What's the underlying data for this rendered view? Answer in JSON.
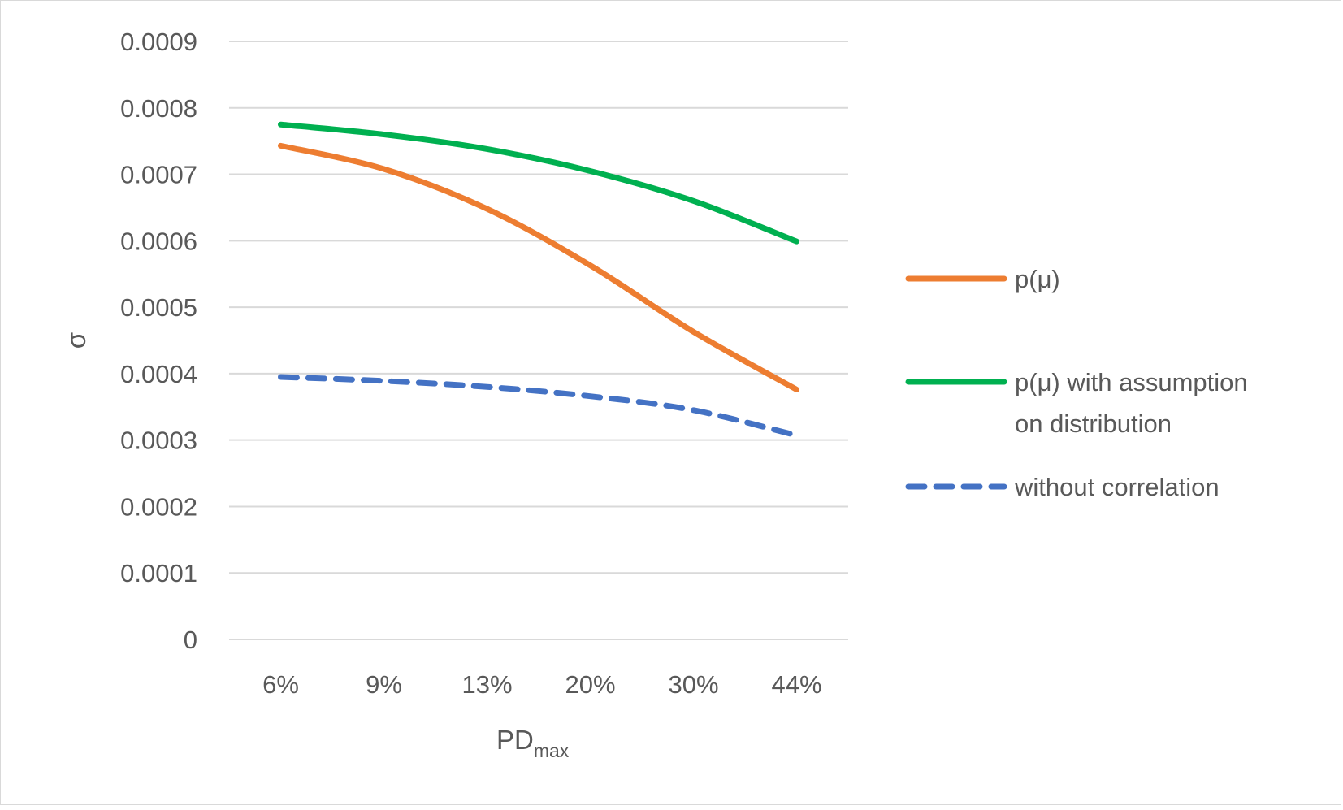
{
  "chart_data": {
    "type": "line",
    "title": "",
    "xlabel": "PD",
    "xlabel_subscript": "max",
    "ylabel": "σ",
    "categories": [
      "6%",
      "9%",
      "13%",
      "20%",
      "30%",
      "44%"
    ],
    "ylim": [
      0,
      0.0009
    ],
    "yticks": [
      0,
      0.0001,
      0.0002,
      0.0003,
      0.0004,
      0.0005,
      0.0006,
      0.0007,
      0.0008,
      0.0009
    ],
    "ytick_labels": [
      "0",
      "0.0001",
      "0.0002",
      "0.0003",
      "0.0004",
      "0.0005",
      "0.0006",
      "0.0007",
      "0.0008",
      "0.0009"
    ],
    "grid": true,
    "legend_position": "right",
    "series": [
      {
        "name": "p(μ)",
        "legend_lines": [
          "p(μ)"
        ],
        "color": "#ED7D31",
        "style": "solid",
        "values": [
          0.000743,
          0.000708,
          0.000648,
          0.000563,
          0.000463,
          0.000376
        ]
      },
      {
        "name": "p(μ) with assumption on distribution",
        "legend_lines": [
          "p(μ) with assumption",
          "on distribution"
        ],
        "color": "#00B050",
        "style": "solid",
        "values": [
          0.000775,
          0.00076,
          0.000738,
          0.000705,
          0.00066,
          0.000599
        ]
      },
      {
        "name": "without correlation",
        "legend_lines": [
          "without correlation"
        ],
        "color": "#4472C4",
        "style": "dashed",
        "values": [
          0.000395,
          0.000389,
          0.00038,
          0.000366,
          0.000345,
          0.000307
        ]
      }
    ]
  }
}
